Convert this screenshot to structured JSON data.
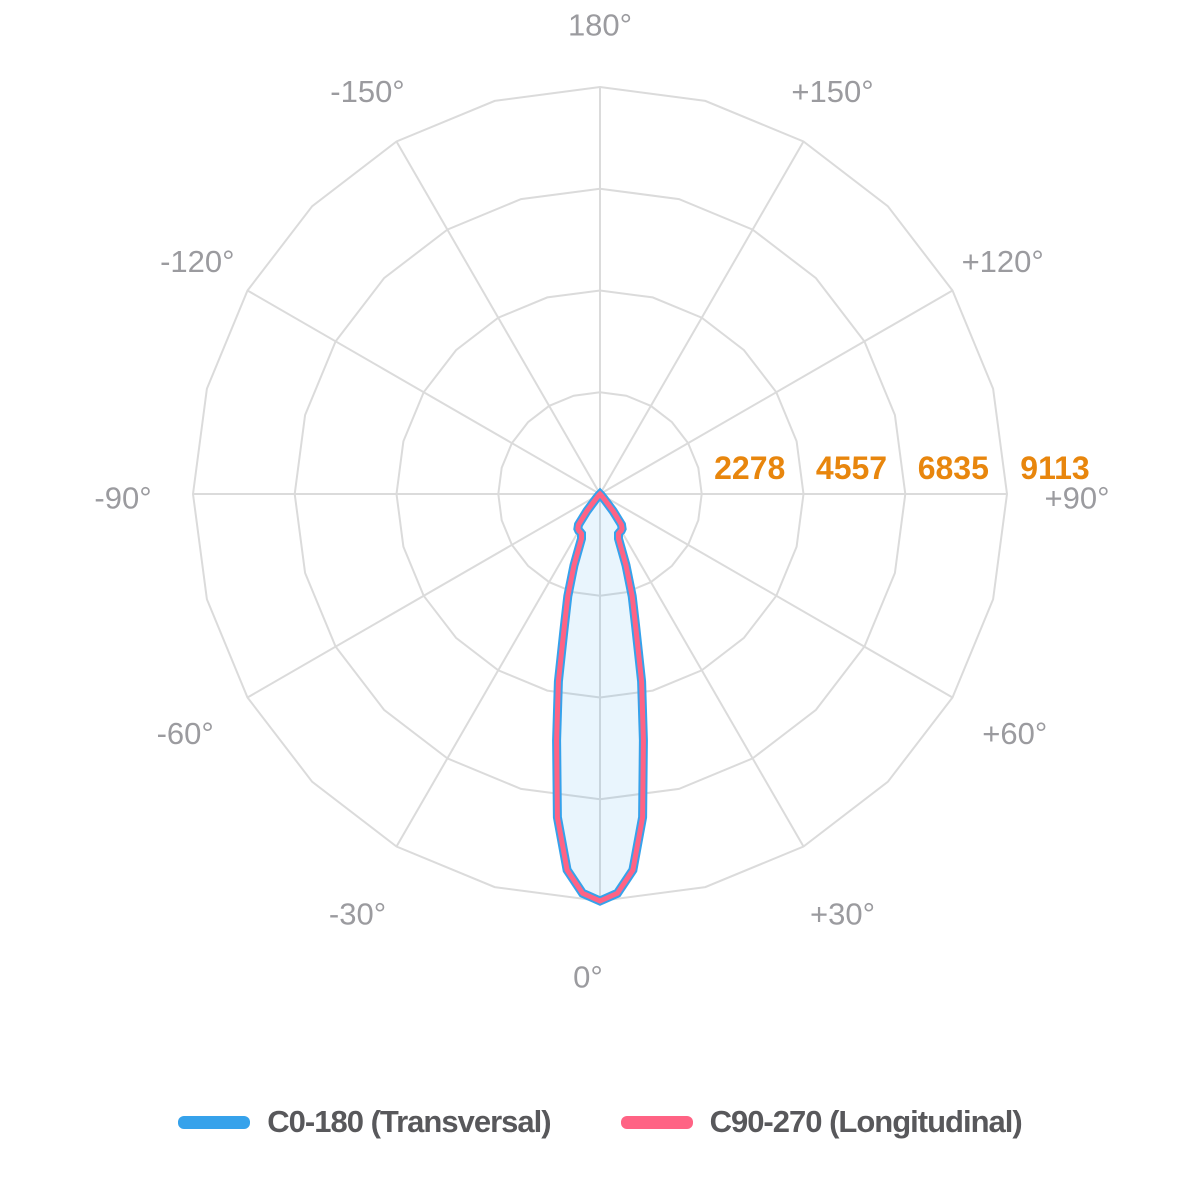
{
  "chart_data": {
    "type": "polar-photometric",
    "units": "cd",
    "max": 9113,
    "radial_ticks": [
      2278,
      4557,
      6835,
      9113
    ],
    "radial_tick_labels": [
      "2278",
      "4557",
      "6835",
      "9113"
    ],
    "angle_labels": [
      {
        "angle": 180,
        "label": "180°"
      },
      {
        "angle": -150,
        "label": "-150°"
      },
      {
        "angle": 150,
        "label": "+150°"
      },
      {
        "angle": -120,
        "label": "-120°"
      },
      {
        "angle": 120,
        "label": "+120°"
      },
      {
        "angle": -90,
        "label": "-90°"
      },
      {
        "angle": 90,
        "label": "+90°"
      },
      {
        "angle": -60,
        "label": "-60°"
      },
      {
        "angle": 60,
        "label": "+60°"
      },
      {
        "angle": -30,
        "label": "-30°"
      },
      {
        "angle": 30,
        "label": "+30°"
      },
      {
        "angle": 0,
        "label": "0°"
      }
    ],
    "spoke_step_deg": 30,
    "ring_vertex_step_deg": 15,
    "gamma": [
      -180,
      -150,
      -120,
      -90,
      -75,
      -60,
      -50,
      -45,
      -40,
      -37.5,
      -35,
      -32.5,
      -30,
      -27.5,
      -25,
      -22.5,
      -20,
      -17.5,
      -15,
      -12.5,
      -10,
      -7.5,
      -5,
      -2.5,
      0,
      2.5,
      5,
      7.5,
      10,
      12.5,
      15,
      17.5,
      20,
      22.5,
      25,
      27.5,
      30,
      32.5,
      35,
      37.5,
      40,
      45,
      50,
      60,
      75,
      90,
      120,
      150,
      180
    ],
    "series": [
      {
        "name": "C0-180 (Transversal)",
        "color": "#36A2EB",
        "values": [
          0,
          0,
          0,
          0,
          0,
          0,
          10,
          30,
          140,
          480,
          840,
          920,
          950,
          960,
          980,
          1080,
          1700,
          2400,
          3100,
          4300,
          5600,
          7300,
          8450,
          8950,
          9113,
          8950,
          8450,
          7300,
          5600,
          4300,
          3100,
          2400,
          1700,
          1080,
          980,
          960,
          950,
          920,
          840,
          480,
          140,
          30,
          10,
          0,
          0,
          0,
          0,
          0,
          0
        ]
      },
      {
        "name": "C90-270 (Longitudinal)",
        "color": "#FF6384",
        "values": [
          0,
          0,
          0,
          0,
          0,
          0,
          10,
          30,
          140,
          480,
          840,
          920,
          950,
          960,
          980,
          1080,
          1700,
          2400,
          3100,
          4300,
          5600,
          7300,
          8450,
          8950,
          9113,
          8950,
          8450,
          7300,
          5600,
          4300,
          3100,
          2400,
          1700,
          1080,
          980,
          960,
          950,
          920,
          840,
          480,
          140,
          30,
          10,
          0,
          0,
          0,
          0,
          0,
          0
        ]
      }
    ],
    "fill_color": "rgba(54,162,235,0.11)",
    "grid_color": "#DBDBDB",
    "tick_label_color": "#E8860D",
    "angle_label_color": "#9B9B9F",
    "legend_position": "bottom"
  },
  "legend": {
    "items": [
      {
        "label": "C0-180 (Transversal)",
        "color": "#36A2EB"
      },
      {
        "label": "C90-270 (Longitudinal)",
        "color": "#FF6384"
      }
    ]
  }
}
